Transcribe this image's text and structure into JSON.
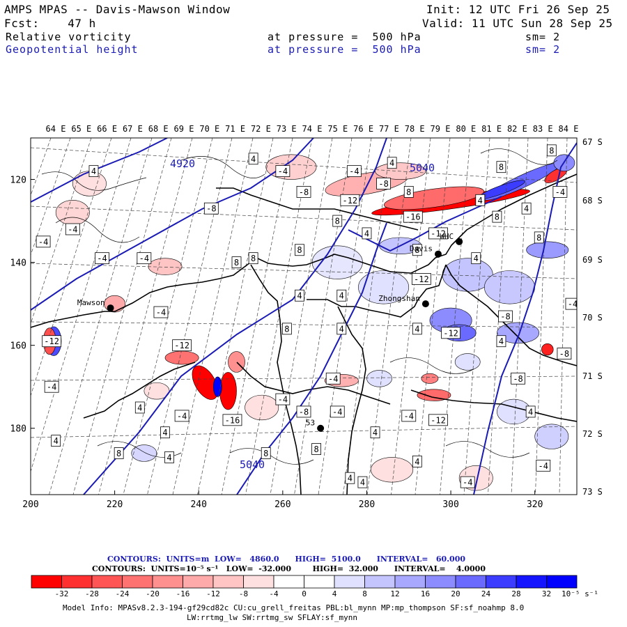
{
  "header": {
    "title": "AMPS MPAS -- Davis-Mawson Window",
    "init": "Init: 12 UTC Fri 26 Sep 25",
    "fcst": "Fcst:    47 h",
    "valid": "Valid: 11 UTC Sun 28 Sep 25"
  },
  "fields": [
    {
      "name": "Relative vorticity",
      "level": "at pressure =  500 hPa",
      "smooth": "sm= 2",
      "color": "#000000"
    },
    {
      "name": "Geopotential height",
      "level": "at pressure =  500 hPa",
      "smooth": "sm= 2",
      "color": "#1a1ab4"
    }
  ],
  "chart_data": {
    "type": "heatmap",
    "description_fields": [
      "Relative vorticity (shaded, 10^-5 s^-1)",
      "Geopotential height (blue contours, m)"
    ],
    "x_axis": {
      "ticks": [
        200,
        220,
        240,
        260,
        280,
        300,
        320
      ],
      "range": [
        200,
        330
      ]
    },
    "y_axis": {
      "ticks": [
        120,
        140,
        160,
        180
      ],
      "range": [
        110,
        196
      ],
      "inverted": true
    },
    "top_lon_labels": [
      "64 E",
      "65 E",
      "66 E",
      "67 E",
      "68 E",
      "69 E",
      "70 E",
      "71 E",
      "72 E",
      "73 E",
      "74 E",
      "75 E",
      "76 E",
      "77 E",
      "78 E",
      "79 E",
      "80 E",
      "81 E",
      "82 E",
      "83 E",
      "84 E"
    ],
    "right_lat_labels": [
      "67 S",
      "68 S",
      "69 S",
      "70 S",
      "71 S",
      "72 S",
      "73 S"
    ],
    "height_contours": {
      "units": "m",
      "low": 4860.0,
      "high": 5100.0,
      "interval": 60.0,
      "labels": [
        "4920",
        "5040",
        "5040"
      ]
    },
    "vorticity_contours": {
      "units": "10^-5 s^-1",
      "low": -32.0,
      "high": 32.0,
      "interval": 4.0
    },
    "stations": [
      {
        "name": "Mawson",
        "x": 219,
        "y": 151
      },
      {
        "name": "Zhongshan",
        "x": 294,
        "y": 150
      },
      {
        "name": "Davis",
        "x": 297,
        "y": 138
      },
      {
        "name": "WHC",
        "x": 302,
        "y": 135
      },
      {
        "name": "53",
        "x": 269,
        "y": 180
      }
    ],
    "vorticity_labels": [
      {
        "v": "4",
        "x": 215,
        "y": 118
      },
      {
        "v": "-4",
        "x": 260,
        "y": 118
      },
      {
        "v": "4",
        "x": 253,
        "y": 115
      },
      {
        "v": "-4",
        "x": 277,
        "y": 118
      },
      {
        "v": "4",
        "x": 286,
        "y": 116
      },
      {
        "v": "-8",
        "x": 284,
        "y": 121
      },
      {
        "v": "-8",
        "x": 265,
        "y": 123
      },
      {
        "v": "-12",
        "x": 276,
        "y": 125
      },
      {
        "v": "-16",
        "x": 291,
        "y": 129
      },
      {
        "v": "8",
        "x": 290,
        "y": 123
      },
      {
        "v": "8",
        "x": 312,
        "y": 117
      },
      {
        "v": "8",
        "x": 324,
        "y": 113
      },
      {
        "v": "4",
        "x": 307,
        "y": 125
      },
      {
        "v": "-4",
        "x": 326,
        "y": 123
      },
      {
        "v": "8",
        "x": 311,
        "y": 129
      },
      {
        "v": "4",
        "x": 318,
        "y": 127
      },
      {
        "v": "8",
        "x": 321,
        "y": 134
      },
      {
        "v": "-12",
        "x": 297,
        "y": 133
      },
      {
        "v": "8",
        "x": 273,
        "y": 130
      },
      {
        "v": "4",
        "x": 280,
        "y": 133
      },
      {
        "v": "-8",
        "x": 243,
        "y": 127
      },
      {
        "v": "-4",
        "x": 210,
        "y": 132
      },
      {
        "v": "-4",
        "x": 203,
        "y": 135
      },
      {
        "v": "-4",
        "x": 217,
        "y": 139
      },
      {
        "v": "-4",
        "x": 227,
        "y": 139
      },
      {
        "v": "8",
        "x": 249,
        "y": 140
      },
      {
        "v": "8",
        "x": 253,
        "y": 139
      },
      {
        "v": "8",
        "x": 264,
        "y": 137
      },
      {
        "v": "8",
        "x": 292,
        "y": 137
      },
      {
        "v": "4",
        "x": 306,
        "y": 139
      },
      {
        "v": "-12",
        "x": 293,
        "y": 144
      },
      {
        "v": "4",
        "x": 264,
        "y": 148
      },
      {
        "v": "4",
        "x": 274,
        "y": 148
      },
      {
        "v": "-4",
        "x": 329,
        "y": 150
      },
      {
        "v": "-8",
        "x": 313,
        "y": 153
      },
      {
        "v": "-4",
        "x": 231,
        "y": 152
      },
      {
        "v": "-12",
        "x": 205,
        "y": 159
      },
      {
        "v": "-12",
        "x": 236,
        "y": 160
      },
      {
        "v": "-12",
        "x": 300,
        "y": 157
      },
      {
        "v": "4",
        "x": 312,
        "y": 159
      },
      {
        "v": "8",
        "x": 261,
        "y": 156
      },
      {
        "v": "4",
        "x": 274,
        "y": 156
      },
      {
        "v": "4",
        "x": 292,
        "y": 156
      },
      {
        "v": "-8",
        "x": 316,
        "y": 168
      },
      {
        "v": "-8",
        "x": 327,
        "y": 162
      },
      {
        "v": "-4",
        "x": 272,
        "y": 168
      },
      {
        "v": "-4",
        "x": 205,
        "y": 170
      },
      {
        "v": "4",
        "x": 226,
        "y": 175
      },
      {
        "v": "-4",
        "x": 260,
        "y": 173
      },
      {
        "v": "-8",
        "x": 265,
        "y": 176
      },
      {
        "v": "-4",
        "x": 273,
        "y": 176
      },
      {
        "v": "-4",
        "x": 236,
        "y": 177
      },
      {
        "v": "-16",
        "x": 248,
        "y": 178
      },
      {
        "v": "-4",
        "x": 290,
        "y": 177
      },
      {
        "v": "-12",
        "x": 297,
        "y": 178
      },
      {
        "v": "4",
        "x": 319,
        "y": 176
      },
      {
        "v": "4",
        "x": 232,
        "y": 181
      },
      {
        "v": "4",
        "x": 282,
        "y": 181
      },
      {
        "v": "4",
        "x": 206,
        "y": 183
      },
      {
        "v": "8",
        "x": 221,
        "y": 186
      },
      {
        "v": "8",
        "x": 256,
        "y": 186
      },
      {
        "v": "8",
        "x": 268,
        "y": 185
      },
      {
        "v": "4",
        "x": 233,
        "y": 187
      },
      {
        "v": "4",
        "x": 292,
        "y": 188
      },
      {
        "v": "-4",
        "x": 322,
        "y": 189
      },
      {
        "v": "4",
        "x": 276,
        "y": 192
      },
      {
        "v": "4",
        "x": 279,
        "y": 193
      },
      {
        "v": "-4",
        "x": 304,
        "y": 193
      }
    ]
  },
  "legend": {
    "line1": "CONTOURS:  UNITS=m  LOW=   4860.0      HIGH=  5100.0      INTERVAL=   60.000",
    "line2": "CONTOURS:  UNITS=10⁻⁵ s⁻¹   LOW=  -32.000        HIGH=  32.000      INTERVAL=    4.0000",
    "colorbar_labels": [
      "-32",
      "-28",
      "-24",
      "-20",
      "-16",
      "-12",
      "-8",
      "-4",
      "0",
      "4",
      "8",
      "12",
      "16",
      "20",
      "24",
      "28",
      "32"
    ],
    "colorbar_units": "10⁻⁵ s⁻¹",
    "colors": [
      "#ff0000",
      "#ff3030",
      "#ff5555",
      "#ff7272",
      "#ff9090",
      "#ffaaaa",
      "#ffc4c4",
      "#ffe0e0",
      "#ffffff",
      "#ffffff",
      "#e0e0ff",
      "#c4c4ff",
      "#a8a8ff",
      "#8c8cff",
      "#6a6aff",
      "#3c3cff",
      "#1414ff",
      "#0000ff"
    ]
  },
  "footer": {
    "model_info": "Model Info: MPASv8.2.3-194-gf29cd82c CU:cu_grell_freitas PBL:bl_mynn MP:mp_thompson SF:sf_noahmp 8.0",
    "model_info2": "LW:rrtmg_lw SW:rrtmg_sw SFLAY:sf_mynn"
  }
}
